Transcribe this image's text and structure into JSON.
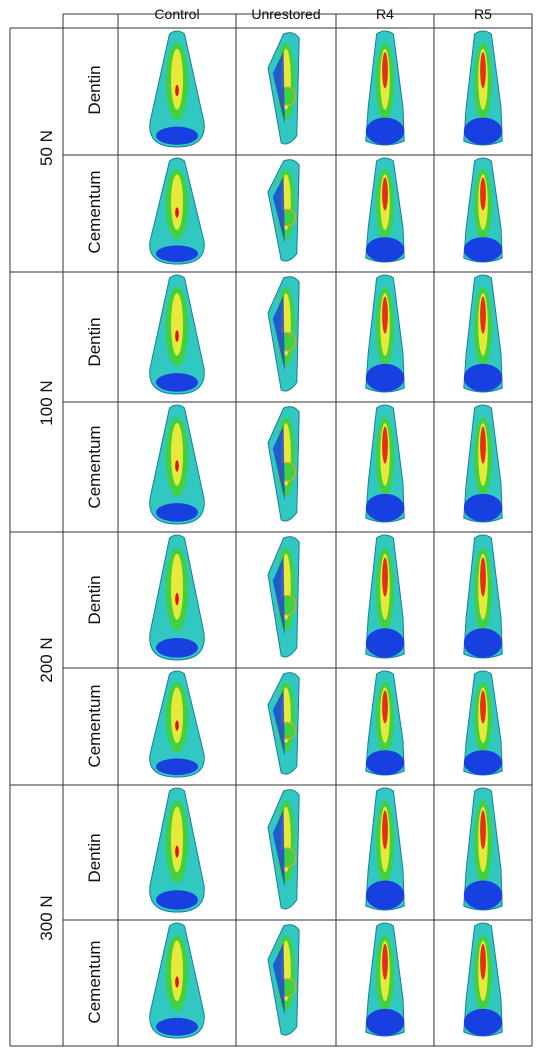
{
  "columns": [
    "Control",
    "Unrestored",
    "R4",
    "R5"
  ],
  "loads": [
    {
      "label": "50 N",
      "rows": [
        "Dentin",
        "Cementum"
      ]
    },
    {
      "label": "100 N",
      "rows": [
        "Dentin",
        "Cementum"
      ]
    },
    {
      "label": "200 N",
      "rows": [
        "Dentin",
        "Cementum"
      ]
    },
    {
      "label": "300 N",
      "rows": [
        "Dentin",
        "Cementum"
      ]
    }
  ],
  "colors": {
    "max": "#e01010",
    "high": "#f5a020",
    "mid": "#e8e838",
    "midlow": "#40d040",
    "low": "#30c8c0",
    "min": "#1840e0",
    "grid": "#333333"
  }
}
